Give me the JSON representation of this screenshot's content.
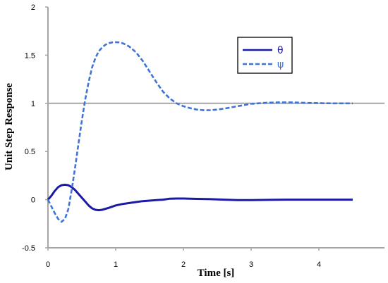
{
  "chart_data": {
    "type": "line",
    "xlabel": "Time [s]",
    "ylabel": "Unit Step Response",
    "xlim": [
      0,
      4.5
    ],
    "ylim": [
      -0.5,
      2
    ],
    "xticks": [
      0,
      1,
      2,
      3,
      4
    ],
    "yticks": [
      -0.5,
      0,
      0.5,
      1,
      1.5,
      2
    ],
    "reference_line": {
      "y": 1,
      "color": "#a6a6a6"
    },
    "grid": false,
    "legend_position": "top-right",
    "series": [
      {
        "name": "θ",
        "color": "#1a1aa6",
        "style": "solid",
        "x": [
          0,
          0.05,
          0.1,
          0.15,
          0.2,
          0.25,
          0.3,
          0.35,
          0.4,
          0.45,
          0.5,
          0.55,
          0.6,
          0.65,
          0.7,
          0.75,
          0.8,
          0.9,
          1.0,
          1.1,
          1.2,
          1.3,
          1.4,
          1.5,
          1.6,
          1.7,
          1.8,
          1.9,
          2.0,
          2.2,
          2.4,
          2.6,
          2.8,
          3.0,
          3.5,
          4.0,
          4.5
        ],
        "y": [
          0,
          0.04,
          0.09,
          0.13,
          0.15,
          0.155,
          0.15,
          0.13,
          0.1,
          0.06,
          0.02,
          -0.02,
          -0.06,
          -0.09,
          -0.105,
          -0.11,
          -0.105,
          -0.085,
          -0.06,
          -0.045,
          -0.035,
          -0.025,
          -0.015,
          -0.01,
          -0.005,
          0.0,
          0.01,
          0.012,
          0.012,
          0.008,
          0.005,
          0.0,
          -0.005,
          -0.005,
          0.0,
          0.0,
          0.0
        ]
      },
      {
        "name": "ψ",
        "color": "#3f74d6",
        "style": "dashed",
        "x": [
          0,
          0.05,
          0.1,
          0.15,
          0.2,
          0.25,
          0.3,
          0.35,
          0.4,
          0.45,
          0.5,
          0.55,
          0.6,
          0.65,
          0.7,
          0.75,
          0.8,
          0.85,
          0.9,
          0.95,
          1.0,
          1.05,
          1.1,
          1.15,
          1.2,
          1.3,
          1.4,
          1.5,
          1.6,
          1.7,
          1.8,
          1.9,
          2.0,
          2.1,
          2.2,
          2.3,
          2.4,
          2.5,
          2.6,
          2.8,
          3.0,
          3.2,
          3.4,
          3.6,
          3.8,
          4.0,
          4.2,
          4.5
        ],
        "y": [
          0,
          -0.07,
          -0.14,
          -0.2,
          -0.23,
          -0.2,
          -0.1,
          0.1,
          0.33,
          0.58,
          0.82,
          1.04,
          1.22,
          1.37,
          1.47,
          1.54,
          1.58,
          1.61,
          1.625,
          1.633,
          1.635,
          1.633,
          1.625,
          1.61,
          1.59,
          1.53,
          1.44,
          1.33,
          1.22,
          1.12,
          1.05,
          1.0,
          0.97,
          0.95,
          0.935,
          0.928,
          0.93,
          0.935,
          0.945,
          0.97,
          0.995,
          1.005,
          1.01,
          1.01,
          1.005,
          1.002,
          1.0,
          1.0
        ]
      }
    ]
  }
}
